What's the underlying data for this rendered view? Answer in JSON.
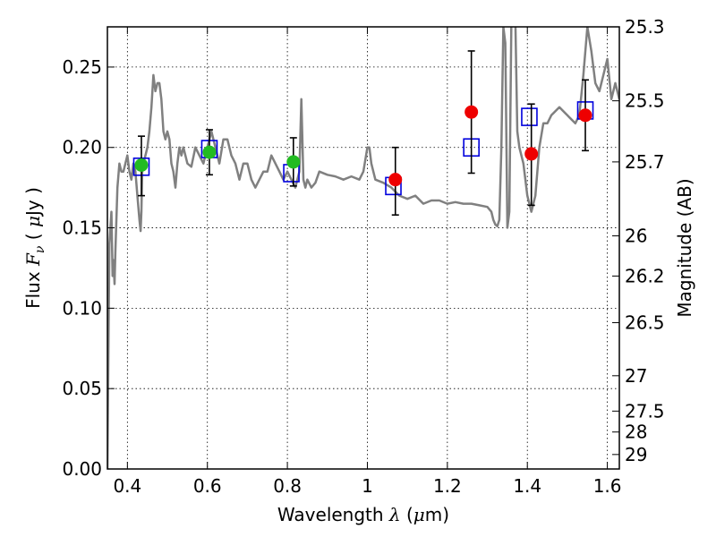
{
  "chart_data": {
    "type": "scatter",
    "xlabel": {
      "prefix": "Wavelength ",
      "symbol": "λ",
      "unit_open": " (",
      "unit_mu": "μ",
      "unit_close": "m)"
    },
    "ylabel": {
      "prefix": "Flux  ",
      "symbol": "F",
      "subscript": "ν",
      "unit_open": " ( ",
      "unit_mu": "μ",
      "unit_close": "Jy )"
    },
    "y2label": "Magnitude (AB)",
    "xlim": [
      0.35,
      1.63
    ],
    "ylim": [
      0.0,
      0.275
    ],
    "grid": true,
    "x_ticks": [
      {
        "value": 0.4,
        "label": "0.4"
      },
      {
        "value": 0.6,
        "label": "0.6"
      },
      {
        "value": 0.8,
        "label": "0.8"
      },
      {
        "value": 1.0,
        "label": "1"
      },
      {
        "value": 1.2,
        "label": "1.2"
      },
      {
        "value": 1.4,
        "label": "1.4"
      },
      {
        "value": 1.6,
        "label": "1.6"
      }
    ],
    "y_ticks": [
      {
        "value": 0.0,
        "label": "0.00"
      },
      {
        "value": 0.05,
        "label": "0.05"
      },
      {
        "value": 0.1,
        "label": "0.10"
      },
      {
        "value": 0.15,
        "label": "0.15"
      },
      {
        "value": 0.2,
        "label": "0.20"
      },
      {
        "value": 0.25,
        "label": "0.25"
      }
    ],
    "magnitude_ticks": [
      {
        "label": "25.3",
        "flux": 0.275
      },
      {
        "label": "25.5",
        "flux": 0.229
      },
      {
        "label": "25.7",
        "flux": 0.191
      },
      {
        "label": "26",
        "flux": 0.145
      },
      {
        "label": "26.2",
        "flux": 0.12
      },
      {
        "label": "26.5",
        "flux": 0.091
      },
      {
        "label": "27",
        "flux": 0.058
      },
      {
        "label": "27.5",
        "flux": 0.036
      },
      {
        "label": "28",
        "flux": 0.023
      },
      {
        "label": "29",
        "flux": 0.009
      }
    ],
    "colors": {
      "model": "#808080",
      "observed_optical": "#22bb22",
      "observed_ir": "#ee0000",
      "model_photometry": "#0000dd",
      "errorbar": "#000000"
    },
    "model_spectrum": {
      "x": [
        0.35,
        0.355,
        0.36,
        0.363,
        0.365,
        0.368,
        0.37,
        0.375,
        0.38,
        0.385,
        0.39,
        0.395,
        0.4,
        0.405,
        0.41,
        0.415,
        0.42,
        0.425,
        0.43,
        0.433,
        0.435,
        0.437,
        0.44,
        0.445,
        0.45,
        0.455,
        0.46,
        0.465,
        0.47,
        0.475,
        0.48,
        0.485,
        0.49,
        0.495,
        0.5,
        0.505,
        0.51,
        0.515,
        0.52,
        0.525,
        0.53,
        0.535,
        0.54,
        0.55,
        0.56,
        0.57,
        0.58,
        0.59,
        0.6,
        0.61,
        0.62,
        0.63,
        0.64,
        0.65,
        0.66,
        0.67,
        0.68,
        0.69,
        0.7,
        0.71,
        0.72,
        0.73,
        0.74,
        0.75,
        0.76,
        0.77,
        0.78,
        0.79,
        0.8,
        0.81,
        0.82,
        0.83,
        0.835,
        0.84,
        0.845,
        0.85,
        0.86,
        0.87,
        0.88,
        0.9,
        0.92,
        0.94,
        0.96,
        0.98,
        0.99,
        1.0,
        1.005,
        1.01,
        1.02,
        1.04,
        1.06,
        1.08,
        1.1,
        1.12,
        1.14,
        1.16,
        1.18,
        1.2,
        1.22,
        1.24,
        1.26,
        1.28,
        1.3,
        1.31,
        1.315,
        1.32,
        1.325,
        1.33,
        1.335,
        1.34,
        1.345,
        1.35,
        1.355,
        1.36,
        1.37,
        1.375,
        1.38,
        1.39,
        1.4,
        1.41,
        1.42,
        1.43,
        1.44,
        1.45,
        1.46,
        1.48,
        1.5,
        1.52,
        1.53,
        1.54,
        1.55,
        1.56,
        1.57,
        1.58,
        1.6,
        1.61,
        1.62,
        1.63
      ],
      "y": [
        0.0,
        0.14,
        0.16,
        0.12,
        0.13,
        0.115,
        0.135,
        0.175,
        0.19,
        0.185,
        0.185,
        0.19,
        0.195,
        0.185,
        0.18,
        0.19,
        0.185,
        0.17,
        0.155,
        0.148,
        0.16,
        0.185,
        0.19,
        0.195,
        0.2,
        0.21,
        0.225,
        0.245,
        0.235,
        0.24,
        0.24,
        0.23,
        0.21,
        0.205,
        0.21,
        0.205,
        0.19,
        0.185,
        0.175,
        0.19,
        0.2,
        0.195,
        0.2,
        0.19,
        0.188,
        0.2,
        0.195,
        0.19,
        0.2,
        0.21,
        0.2,
        0.19,
        0.205,
        0.205,
        0.195,
        0.19,
        0.18,
        0.19,
        0.19,
        0.18,
        0.175,
        0.18,
        0.185,
        0.185,
        0.195,
        0.19,
        0.185,
        0.18,
        0.185,
        0.18,
        0.175,
        0.185,
        0.23,
        0.18,
        0.175,
        0.18,
        0.175,
        0.178,
        0.185,
        0.183,
        0.182,
        0.18,
        0.182,
        0.18,
        0.185,
        0.2,
        0.2,
        0.19,
        0.18,
        0.178,
        0.175,
        0.17,
        0.168,
        0.17,
        0.165,
        0.167,
        0.167,
        0.165,
        0.166,
        0.165,
        0.165,
        0.164,
        0.163,
        0.16,
        0.155,
        0.152,
        0.151,
        0.155,
        0.2,
        0.275,
        0.265,
        0.15,
        0.16,
        0.275,
        0.28,
        0.21,
        0.2,
        0.19,
        0.17,
        0.16,
        0.17,
        0.2,
        0.215,
        0.215,
        0.22,
        0.225,
        0.22,
        0.215,
        0.22,
        0.245,
        0.275,
        0.26,
        0.24,
        0.235,
        0.255,
        0.23,
        0.24,
        0.23
      ]
    },
    "observed_optical": {
      "x": [
        0.435,
        0.605,
        0.815
      ],
      "y": [
        0.189,
        0.197,
        0.191
      ],
      "err_low": [
        0.17,
        0.183,
        0.176
      ],
      "err_high": [
        0.207,
        0.211,
        0.206
      ]
    },
    "observed_ir": {
      "x": [
        1.07,
        1.26,
        1.41,
        1.545
      ],
      "y": [
        0.18,
        0.222,
        0.196,
        0.22
      ],
      "err_low": [
        0.158,
        0.184,
        0.164,
        0.198
      ],
      "err_high": [
        0.2,
        0.26,
        0.227,
        0.242
      ]
    },
    "model_photometry": {
      "x": [
        0.435,
        0.605,
        0.81,
        1.065,
        1.26,
        1.405,
        1.545
      ],
      "y": [
        0.188,
        0.199,
        0.184,
        0.176,
        0.2,
        0.219,
        0.223
      ]
    }
  }
}
